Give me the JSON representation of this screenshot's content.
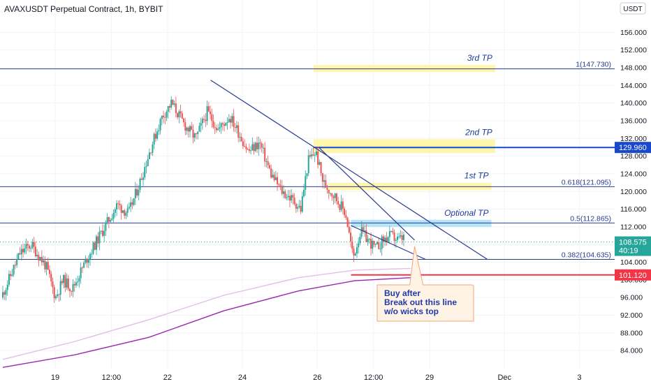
{
  "chart_data": {
    "type": "candlestick",
    "title": "AVAXUSDT Perpetual Contract, 1h, BYBIT",
    "currency": "USDT",
    "ylim": [
      80,
      160
    ],
    "y_ticks": [
      "84.000",
      "88.000",
      "92.000",
      "96.000",
      "100.000",
      "104.000",
      "108.000",
      "112.000",
      "116.000",
      "120.000",
      "124.000",
      "128.000",
      "132.000",
      "136.000",
      "140.000",
      "144.000",
      "148.000",
      "152.000",
      "156.000"
    ],
    "x_ticks": [
      {
        "label": "19",
        "day": 19.0
      },
      {
        "label": "12:00",
        "day": 20.5
      },
      {
        "label": "22",
        "day": 22.0
      },
      {
        "label": "24",
        "day": 24.0
      },
      {
        "label": "26",
        "day": 26.0
      },
      {
        "label": "12:00",
        "day": 27.5
      },
      {
        "label": "29",
        "day": 29.0
      },
      {
        "label": "Dec",
        "day": 31.0
      },
      {
        "label": "3",
        "day": 33.0
      }
    ],
    "x_range_days": [
      17.6,
      33.85
    ],
    "price_path": [
      [
        17.6,
        96
      ],
      [
        18.1,
        106
      ],
      [
        18.4,
        108
      ],
      [
        18.8,
        103
      ],
      [
        19.05,
        96
      ],
      [
        19.25,
        100
      ],
      [
        19.5,
        98
      ],
      [
        19.9,
        105
      ],
      [
        20.3,
        111
      ],
      [
        20.7,
        117
      ],
      [
        21.0,
        115
      ],
      [
        21.3,
        122
      ],
      [
        21.6,
        130
      ],
      [
        21.9,
        137
      ],
      [
        22.15,
        140
      ],
      [
        22.5,
        135
      ],
      [
        22.8,
        132
      ],
      [
        23.1,
        138
      ],
      [
        23.4,
        134
      ],
      [
        23.7,
        137
      ],
      [
        23.9,
        134
      ],
      [
        24.2,
        129
      ],
      [
        24.5,
        131
      ],
      [
        24.8,
        124
      ],
      [
        25.1,
        120
      ],
      [
        25.4,
        118
      ],
      [
        25.6,
        116
      ],
      [
        25.8,
        127
      ],
      [
        26.0,
        129
      ],
      [
        26.2,
        122
      ],
      [
        26.5,
        119
      ],
      [
        26.8,
        115
      ],
      [
        27.0,
        105
      ],
      [
        27.2,
        111
      ],
      [
        27.4,
        109
      ],
      [
        27.6,
        107
      ],
      [
        27.8,
        109
      ],
      [
        28.0,
        110
      ],
      [
        28.2,
        109
      ],
      [
        28.35,
        109.5
      ]
    ],
    "last_price": "108.575",
    "countdown": "40:19",
    "moving_average_lines": [
      {
        "color": "#9c27b0",
        "points": [
          [
            17.6,
            80.2
          ],
          [
            19.5,
            83
          ],
          [
            21.5,
            87
          ],
          [
            23.5,
            93
          ],
          [
            25.5,
            97.5
          ],
          [
            27.0,
            99.8
          ],
          [
            28.5,
            100.5
          ]
        ]
      },
      {
        "color": "#e1bee7",
        "points": [
          [
            17.6,
            82
          ],
          [
            19.5,
            86
          ],
          [
            21.5,
            91
          ],
          [
            23.5,
            96.5
          ],
          [
            25.5,
            100.5
          ],
          [
            27.0,
            102.2
          ],
          [
            28.5,
            102.6
          ]
        ]
      }
    ],
    "horizontal_levels": [
      {
        "price": 147.73,
        "label": "1(147.730)",
        "color": "#2a3b8f"
      },
      {
        "price": 121.095,
        "label": "0.618(121.095)",
        "color": "#2a3b8f"
      },
      {
        "price": 112.865,
        "label": "0.5(112.865)",
        "color": "#2a3b8f"
      },
      {
        "price": 104.635,
        "label": "0.382(104.635)",
        "color": "#2a3b8f"
      }
    ],
    "marked_prices": [
      {
        "price": 129.96,
        "label": "129.960",
        "color": "#1848cc"
      },
      {
        "price": 101.12,
        "label": "101.120",
        "color": "#f23645"
      }
    ],
    "target_zones": [
      {
        "label": "3rd TP",
        "from_day": 25.9,
        "to_day": 30.75,
        "price_low": 147.0,
        "price_high": 148.6,
        "color": "#fff59d"
      },
      {
        "label": "2nd TP",
        "from_day": 25.9,
        "to_day": 30.75,
        "price_low": 128.7,
        "price_high": 131.8,
        "color": "#fff59d"
      },
      {
        "label": "1st TP",
        "from_day": 26.3,
        "to_day": 30.65,
        "price_low": 120.3,
        "price_high": 122.0,
        "color": "#fff59d"
      },
      {
        "label": "Optional TP",
        "from_day": 26.9,
        "to_day": 30.65,
        "price_low": 112.0,
        "price_high": 113.6,
        "color": "#a7dff3"
      }
    ],
    "trend_lines": [
      {
        "from": [
          23.15,
          145.2
        ],
        "to": [
          30.55,
          104.6
        ]
      },
      {
        "from": [
          26.05,
          129.9
        ],
        "to": [
          28.6,
          109.0
        ]
      },
      {
        "from": [
          26.9,
          112.3
        ],
        "to": [
          28.9,
          104.6
        ]
      }
    ],
    "annotation": {
      "lines": [
        "Buy after",
        "Break out this line",
        "w/o wicks top"
      ],
      "pointer_day": 28.6,
      "pointer_price": 107.6
    }
  }
}
